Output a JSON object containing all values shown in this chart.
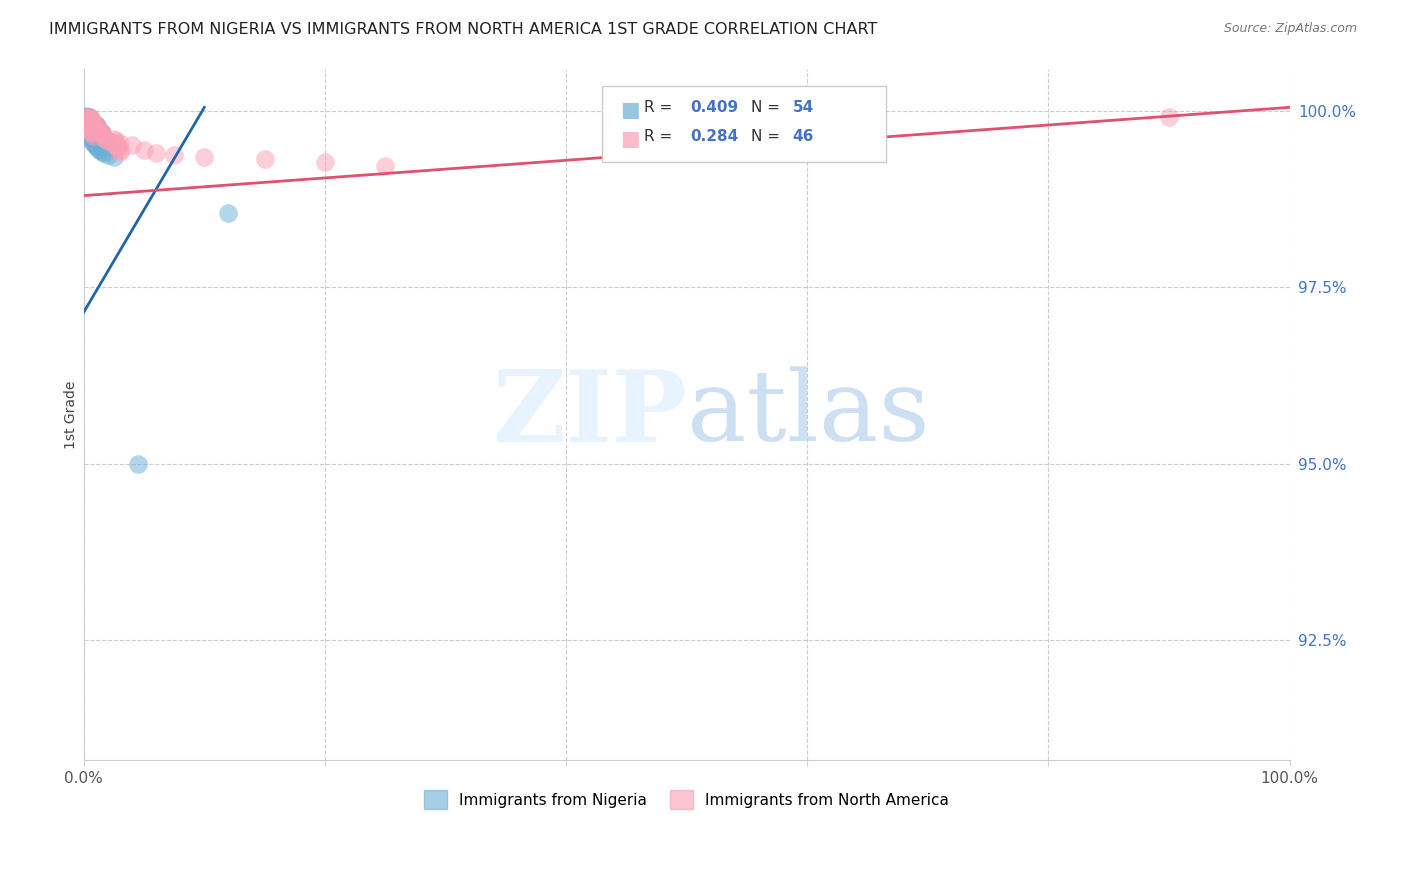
{
  "title": "IMMIGRANTS FROM NIGERIA VS IMMIGRANTS FROM NORTH AMERICA 1ST GRADE CORRELATION CHART",
  "source": "Source: ZipAtlas.com",
  "ylabel": "1st Grade",
  "xlim": [
    0,
    1.0
  ],
  "ylim": [
    0.908,
    1.006
  ],
  "yticks": [
    0.925,
    0.95,
    0.975,
    1.0
  ],
  "ytick_labels": [
    "92.5%",
    "95.0%",
    "97.5%",
    "100.0%"
  ],
  "xticks": [
    0.0,
    0.2,
    0.4,
    0.6,
    0.8,
    1.0
  ],
  "xtick_labels": [
    "0.0%",
    "",
    "",
    "",
    "",
    "100.0%"
  ],
  "blue_label": "Immigrants from Nigeria",
  "pink_label": "Immigrants from North America",
  "blue_R": 0.409,
  "blue_N": 54,
  "pink_R": 0.284,
  "pink_N": 46,
  "blue_color": "#6baed6",
  "pink_color": "#fa9fb5",
  "blue_line_color": "#2166ac",
  "pink_line_color": "#e05070",
  "blue_line_x0": 0.0,
  "blue_line_y0": 0.9715,
  "blue_line_x1": 0.1,
  "blue_line_y1": 1.0005,
  "pink_line_x0": 0.0,
  "pink_line_y0": 0.988,
  "pink_line_x1": 1.0,
  "pink_line_y1": 1.0005,
  "blue_points": [
    [
      0.001,
      0.9992
    ],
    [
      0.002,
      0.9991
    ],
    [
      0.002,
      0.9989
    ],
    [
      0.003,
      0.9993
    ],
    [
      0.003,
      0.999
    ],
    [
      0.003,
      0.9988
    ],
    [
      0.004,
      0.999
    ],
    [
      0.004,
      0.9988
    ],
    [
      0.004,
      0.9985
    ],
    [
      0.005,
      0.9991
    ],
    [
      0.005,
      0.9988
    ],
    [
      0.005,
      0.9985
    ],
    [
      0.005,
      0.9982
    ],
    [
      0.006,
      0.9988
    ],
    [
      0.006,
      0.9985
    ],
    [
      0.006,
      0.9982
    ],
    [
      0.006,
      0.9979
    ],
    [
      0.007,
      0.9985
    ],
    [
      0.007,
      0.9982
    ],
    [
      0.007,
      0.9979
    ],
    [
      0.008,
      0.9982
    ],
    [
      0.008,
      0.9979
    ],
    [
      0.009,
      0.9982
    ],
    [
      0.009,
      0.9979
    ],
    [
      0.01,
      0.998
    ],
    [
      0.01,
      0.9977
    ],
    [
      0.011,
      0.9978
    ],
    [
      0.011,
      0.9975
    ],
    [
      0.012,
      0.9975
    ],
    [
      0.013,
      0.9972
    ],
    [
      0.014,
      0.997
    ],
    [
      0.015,
      0.9968
    ],
    [
      0.016,
      0.9965
    ],
    [
      0.017,
      0.9962
    ],
    [
      0.018,
      0.996
    ],
    [
      0.02,
      0.9958
    ],
    [
      0.001,
      0.9975
    ],
    [
      0.002,
      0.9972
    ],
    [
      0.003,
      0.997
    ],
    [
      0.004,
      0.9968
    ],
    [
      0.005,
      0.9965
    ],
    [
      0.006,
      0.9962
    ],
    [
      0.007,
      0.9958
    ],
    [
      0.008,
      0.9955
    ],
    [
      0.009,
      0.9952
    ],
    [
      0.01,
      0.995
    ],
    [
      0.012,
      0.9948
    ],
    [
      0.013,
      0.9945
    ],
    [
      0.015,
      0.9942
    ],
    [
      0.017,
      0.994
    ],
    [
      0.02,
      0.9938
    ],
    [
      0.025,
      0.9935
    ],
    [
      0.045,
      0.95
    ],
    [
      0.12,
      0.9855
    ]
  ],
  "pink_points": [
    [
      0.002,
      0.9992
    ],
    [
      0.003,
      0.9991
    ],
    [
      0.004,
      0.999
    ],
    [
      0.005,
      0.999
    ],
    [
      0.005,
      0.9988
    ],
    [
      0.006,
      0.9988
    ],
    [
      0.006,
      0.9985
    ],
    [
      0.007,
      0.9985
    ],
    [
      0.007,
      0.9982
    ],
    [
      0.008,
      0.9982
    ],
    [
      0.009,
      0.998
    ],
    [
      0.01,
      0.9978
    ],
    [
      0.011,
      0.9978
    ],
    [
      0.012,
      0.9975
    ],
    [
      0.013,
      0.9972
    ],
    [
      0.014,
      0.997
    ],
    [
      0.015,
      0.9968
    ],
    [
      0.016,
      0.9965
    ],
    [
      0.017,
      0.9962
    ],
    [
      0.018,
      0.996
    ],
    [
      0.02,
      0.9958
    ],
    [
      0.025,
      0.9955
    ],
    [
      0.025,
      0.9952
    ],
    [
      0.028,
      0.995
    ],
    [
      0.028,
      0.9948
    ],
    [
      0.03,
      0.9945
    ],
    [
      0.03,
      0.9942
    ],
    [
      0.002,
      0.998
    ],
    [
      0.003,
      0.9978
    ],
    [
      0.004,
      0.9975
    ],
    [
      0.005,
      0.9972
    ],
    [
      0.006,
      0.997
    ],
    [
      0.007,
      0.9968
    ],
    [
      0.008,
      0.9965
    ],
    [
      0.025,
      0.996
    ],
    [
      0.027,
      0.9958
    ],
    [
      0.03,
      0.9955
    ],
    [
      0.04,
      0.9952
    ],
    [
      0.05,
      0.9945
    ],
    [
      0.06,
      0.994
    ],
    [
      0.075,
      0.9938
    ],
    [
      0.1,
      0.9935
    ],
    [
      0.15,
      0.9932
    ],
    [
      0.2,
      0.9928
    ],
    [
      0.25,
      0.9922
    ],
    [
      0.9,
      0.9992
    ]
  ]
}
